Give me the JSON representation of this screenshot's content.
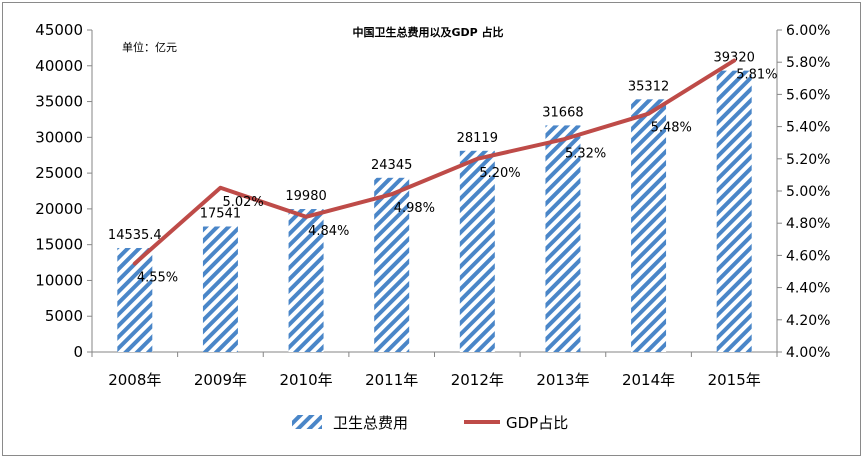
{
  "chart_data": {
    "type": "bar",
    "title": "中国卫生总费用以及GDP 占比",
    "unit_note": "单位：亿元",
    "categories": [
      "2008年",
      "2009年",
      "2010年",
      "2011年",
      "2012年",
      "2013年",
      "2014年",
      "2015年"
    ],
    "series": [
      {
        "name": "卫生总费用",
        "type": "bar",
        "axis": "left",
        "values": [
          14535.4,
          17541,
          19980,
          24345,
          28119,
          31668,
          35312,
          39320
        ],
        "labels": [
          "14535.4",
          "17541",
          "19980",
          "24345",
          "28119",
          "31668",
          "35312",
          "39320"
        ],
        "color": "#4a86c8"
      },
      {
        "name": "GDP占比",
        "type": "line",
        "axis": "right",
        "values": [
          4.55,
          5.02,
          4.84,
          4.98,
          5.2,
          5.32,
          5.48,
          5.81
        ],
        "labels": [
          "4.55%",
          "5.02%",
          "4.84%",
          "4.98%",
          "5.20%",
          "5.32%",
          "5.48%",
          "5.81%"
        ],
        "color": "#be4b48"
      }
    ],
    "y_left": {
      "lim": [
        0,
        45000
      ],
      "ticks": [
        "0",
        "5000",
        "10000",
        "15000",
        "20000",
        "25000",
        "30000",
        "35000",
        "40000",
        "45000"
      ]
    },
    "y_right": {
      "lim": [
        4.0,
        6.0
      ],
      "ticks": [
        "4.00%",
        "4.20%",
        "4.40%",
        "4.60%",
        "4.80%",
        "5.00%",
        "5.20%",
        "5.40%",
        "5.60%",
        "5.80%",
        "6.00%"
      ]
    },
    "grid": false,
    "legend_position": "bottom"
  }
}
